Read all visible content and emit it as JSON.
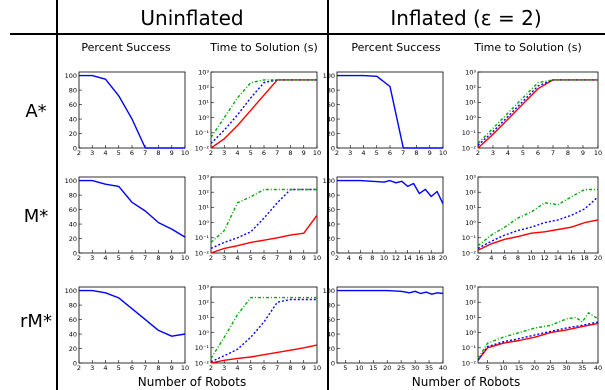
{
  "headers": {
    "uninflated": "Uninflated",
    "inflated": "Inflated (ε = 2)",
    "percent_success": "Percent Success",
    "time_to_solution": "Time to Solution (s)",
    "x_axis_label": "Number of Robots"
  },
  "rows": [
    "A*",
    "M*",
    "rM*"
  ],
  "colors": {
    "red": "#ff0000",
    "blue": "#0000ff",
    "green": "#00aa00",
    "axis": "#000000"
  },
  "line_styles": {
    "red": "solid",
    "blue": "dotted",
    "green": "dash-dot"
  },
  "chart_data": [
    {
      "id": "A*-uninflated-percent",
      "type": "line",
      "xlim": [
        2,
        10
      ],
      "ylim": [
        0,
        105
      ],
      "xticks": [
        2,
        3,
        4,
        5,
        6,
        7,
        8,
        9,
        10
      ],
      "yticks": [
        0,
        20,
        40,
        60,
        80,
        100
      ],
      "series": [
        {
          "color": "blue",
          "style": "solid",
          "x": [
            2,
            3,
            4,
            5,
            6,
            7,
            8,
            9,
            10
          ],
          "y": [
            100,
            100,
            95,
            72,
            40,
            0,
            0,
            0,
            0
          ]
        }
      ]
    },
    {
      "id": "A*-uninflated-time",
      "type": "line",
      "log_y": true,
      "xlim": [
        2,
        10
      ],
      "ylim": [
        -2,
        3
      ],
      "xticks": [
        2,
        3,
        4,
        5,
        6,
        7,
        8,
        9,
        10
      ],
      "yticks": [
        -2,
        -1,
        0,
        1,
        2,
        3
      ],
      "series": [
        {
          "color": "red",
          "style": "solid",
          "x": [
            2,
            3,
            4,
            5,
            6,
            7,
            8,
            9,
            10
          ],
          "y": [
            0.01,
            0.04,
            0.3,
            3,
            30,
            300,
            300,
            300,
            300
          ]
        },
        {
          "color": "blue",
          "style": "dotted",
          "x": [
            2,
            3,
            4,
            5,
            6,
            7,
            8,
            9,
            10
          ],
          "y": [
            0.02,
            0.15,
            1.5,
            20,
            200,
            300,
            300,
            300,
            300
          ]
        },
        {
          "color": "green",
          "style": "dashdot",
          "x": [
            2,
            3,
            4,
            5,
            6,
            7,
            8,
            9,
            10
          ],
          "y": [
            0.05,
            1,
            20,
            200,
            300,
            300,
            300,
            300,
            300
          ]
        }
      ]
    },
    {
      "id": "A*-inflated-percent",
      "type": "line",
      "xlim": [
        2,
        10
      ],
      "ylim": [
        0,
        105
      ],
      "xticks": [
        2,
        3,
        4,
        5,
        6,
        7,
        8,
        9,
        10
      ],
      "yticks": [
        0,
        20,
        40,
        60,
        80,
        100
      ],
      "series": [
        {
          "color": "blue",
          "style": "solid",
          "x": [
            2,
            3,
            4,
            5,
            6,
            7,
            8,
            9,
            10
          ],
          "y": [
            100,
            100,
            100,
            99,
            85,
            0,
            0,
            0,
            0
          ]
        }
      ]
    },
    {
      "id": "A*-inflated-time",
      "type": "line",
      "log_y": true,
      "xlim": [
        2,
        10
      ],
      "ylim": [
        -2,
        3
      ],
      "xticks": [
        2,
        3,
        4,
        5,
        6,
        7,
        8,
        9,
        10
      ],
      "yticks": [
        -2,
        -1,
        0,
        1,
        2,
        3
      ],
      "series": [
        {
          "color": "red",
          "style": "solid",
          "x": [
            2,
            3,
            4,
            5,
            6,
            7,
            8,
            9,
            10
          ],
          "y": [
            0.01,
            0.08,
            0.8,
            8,
            80,
            300,
            300,
            300,
            300
          ]
        },
        {
          "color": "blue",
          "style": "dotted",
          "x": [
            2,
            3,
            4,
            5,
            6,
            7,
            8,
            9,
            10
          ],
          "y": [
            0.015,
            0.12,
            1.2,
            12,
            120,
            300,
            300,
            300,
            300
          ]
        },
        {
          "color": "green",
          "style": "dashdot",
          "x": [
            2,
            3,
            4,
            5,
            6,
            7,
            8,
            9,
            10
          ],
          "y": [
            0.02,
            0.2,
            2,
            20,
            200,
            300,
            300,
            300,
            300
          ]
        }
      ]
    },
    {
      "id": "M*-uninflated-percent",
      "type": "line",
      "xlim": [
        2,
        10
      ],
      "ylim": [
        0,
        105
      ],
      "xticks": [
        2,
        3,
        4,
        5,
        6,
        7,
        8,
        9,
        10
      ],
      "yticks": [
        0,
        20,
        40,
        60,
        80,
        100
      ],
      "series": [
        {
          "color": "blue",
          "style": "solid",
          "x": [
            2,
            3,
            4,
            5,
            6,
            7,
            8,
            9,
            10
          ],
          "y": [
            100,
            100,
            95,
            92,
            70,
            58,
            42,
            33,
            22
          ]
        }
      ]
    },
    {
      "id": "M*-uninflated-time",
      "type": "line",
      "log_y": true,
      "xlim": [
        2,
        10
      ],
      "ylim": [
        -2,
        3
      ],
      "xticks": [
        2,
        3,
        4,
        5,
        6,
        7,
        8,
        9,
        10
      ],
      "yticks": [
        -2,
        -1,
        0,
        1,
        2,
        3
      ],
      "series": [
        {
          "color": "red",
          "style": "solid",
          "x": [
            2,
            3,
            4,
            5,
            6,
            7,
            8,
            9,
            10
          ],
          "y": [
            0.01,
            0.02,
            0.03,
            0.05,
            0.07,
            0.1,
            0.15,
            0.2,
            3
          ]
        },
        {
          "color": "blue",
          "style": "dotted",
          "x": [
            2,
            3,
            4,
            5,
            6,
            7,
            8,
            9,
            10
          ],
          "y": [
            0.02,
            0.05,
            0.1,
            0.25,
            2,
            20,
            150,
            150,
            150
          ]
        },
        {
          "color": "green",
          "style": "dashdot",
          "x": [
            2,
            3,
            4,
            5,
            6,
            7,
            8,
            9,
            10
          ],
          "y": [
            0.05,
            0.3,
            20,
            50,
            150,
            150,
            150,
            150,
            150
          ]
        }
      ]
    },
    {
      "id": "M*-inflated-percent",
      "type": "line",
      "xlim": [
        2,
        20
      ],
      "ylim": [
        0,
        105
      ],
      "xticks": [
        2,
        4,
        6,
        8,
        10,
        12,
        14,
        16,
        18,
        20
      ],
      "yticks": [
        0,
        20,
        40,
        60,
        80,
        100
      ],
      "series": [
        {
          "color": "blue",
          "style": "solid",
          "x": [
            2,
            4,
            6,
            8,
            10,
            11,
            12,
            13,
            14,
            15,
            16,
            17,
            18,
            19,
            20
          ],
          "y": [
            100,
            100,
            100,
            99,
            98,
            100,
            97,
            99,
            92,
            96,
            82,
            88,
            78,
            85,
            68
          ]
        }
      ]
    },
    {
      "id": "M*-inflated-time",
      "type": "line",
      "log_y": true,
      "xlim": [
        2,
        20
      ],
      "ylim": [
        -2,
        3
      ],
      "xticks": [
        2,
        4,
        6,
        8,
        10,
        12,
        14,
        16,
        18,
        20
      ],
      "yticks": [
        -2,
        -1,
        0,
        1,
        2,
        3
      ],
      "series": [
        {
          "color": "red",
          "style": "solid",
          "x": [
            2,
            4,
            6,
            8,
            10,
            12,
            14,
            16,
            18,
            20
          ],
          "y": [
            0.015,
            0.04,
            0.08,
            0.12,
            0.2,
            0.25,
            0.35,
            0.5,
            1,
            1.5
          ]
        },
        {
          "color": "blue",
          "style": "dotted",
          "x": [
            2,
            4,
            6,
            8,
            10,
            12,
            14,
            16,
            18,
            20
          ],
          "y": [
            0.02,
            0.06,
            0.15,
            0.3,
            0.5,
            1,
            1.5,
            3,
            8,
            50
          ]
        },
        {
          "color": "green",
          "style": "dashdot",
          "x": [
            2,
            4,
            6,
            8,
            10,
            12,
            14,
            16,
            18,
            20
          ],
          "y": [
            0.03,
            0.15,
            0.5,
            2,
            5,
            20,
            15,
            50,
            150,
            150
          ]
        }
      ]
    },
    {
      "id": "rM*-uninflated-percent",
      "type": "line",
      "xlim": [
        2,
        10
      ],
      "ylim": [
        0,
        105
      ],
      "xticks": [
        2,
        3,
        4,
        5,
        6,
        7,
        8,
        9,
        10
      ],
      "yticks": [
        0,
        20,
        40,
        60,
        80,
        100
      ],
      "series": [
        {
          "color": "blue",
          "style": "solid",
          "x": [
            2,
            3,
            4,
            5,
            6,
            7,
            8,
            9,
            10
          ],
          "y": [
            100,
            100,
            97,
            90,
            75,
            60,
            45,
            37,
            40
          ]
        }
      ]
    },
    {
      "id": "rM*-uninflated-time",
      "type": "line",
      "log_y": true,
      "xlim": [
        2,
        10
      ],
      "ylim": [
        -2,
        3
      ],
      "xticks": [
        2,
        3,
        4,
        5,
        6,
        7,
        8,
        9,
        10
      ],
      "yticks": [
        -2,
        -1,
        0,
        1,
        2,
        3
      ],
      "series": [
        {
          "color": "red",
          "style": "solid",
          "x": [
            2,
            3,
            4,
            5,
            6,
            7,
            8,
            9,
            10
          ],
          "y": [
            0.01,
            0.015,
            0.02,
            0.025,
            0.035,
            0.05,
            0.07,
            0.1,
            0.15
          ]
        },
        {
          "color": "blue",
          "style": "dotted",
          "x": [
            2,
            3,
            4,
            5,
            6,
            7,
            8,
            9,
            10
          ],
          "y": [
            0.012,
            0.03,
            0.08,
            0.5,
            5,
            100,
            150,
            150,
            150
          ]
        },
        {
          "color": "green",
          "style": "dashdot",
          "x": [
            2,
            3,
            4,
            5,
            6,
            7,
            8,
            9,
            10
          ],
          "y": [
            0.02,
            0.5,
            15,
            200,
            200,
            200,
            200,
            200,
            200
          ]
        }
      ]
    },
    {
      "id": "rM*-inflated-percent",
      "type": "line",
      "xlim": [
        2,
        40
      ],
      "ylim": [
        0,
        105
      ],
      "xticks": [
        5,
        10,
        15,
        20,
        25,
        30,
        35,
        40
      ],
      "yticks": [
        0,
        20,
        40,
        60,
        80,
        100
      ],
      "series": [
        {
          "color": "blue",
          "style": "solid",
          "x": [
            2,
            5,
            10,
            15,
            20,
            25,
            28,
            30,
            32,
            34,
            36,
            38,
            40
          ],
          "y": [
            100,
            100,
            100,
            100,
            100,
            99,
            97,
            99,
            96,
            98,
            95,
            97,
            96
          ]
        }
      ]
    },
    {
      "id": "rM*-inflated-time",
      "type": "line",
      "log_y": true,
      "xlim": [
        2,
        40
      ],
      "ylim": [
        -2,
        3
      ],
      "xticks": [
        5,
        10,
        15,
        20,
        25,
        30,
        35,
        40
      ],
      "yticks": [
        -2,
        -1,
        0,
        1,
        2,
        3
      ],
      "series": [
        {
          "color": "red",
          "style": "solid",
          "x": [
            2,
            5,
            10,
            15,
            20,
            25,
            30,
            35,
            40
          ],
          "y": [
            0.015,
            0.1,
            0.2,
            0.3,
            0.5,
            1,
            1.5,
            2.5,
            4
          ]
        },
        {
          "color": "blue",
          "style": "dotted",
          "x": [
            2,
            5,
            10,
            15,
            20,
            25,
            30,
            35,
            40
          ],
          "y": [
            0.015,
            0.12,
            0.25,
            0.4,
            0.7,
            1.2,
            2,
            3,
            5
          ]
        },
        {
          "color": "green",
          "style": "dashdot",
          "x": [
            2,
            5,
            10,
            15,
            20,
            25,
            30,
            33,
            35,
            37,
            40
          ],
          "y": [
            0.02,
            0.2,
            0.5,
            1,
            2,
            3,
            8,
            10,
            5,
            20,
            8
          ]
        }
      ]
    }
  ]
}
